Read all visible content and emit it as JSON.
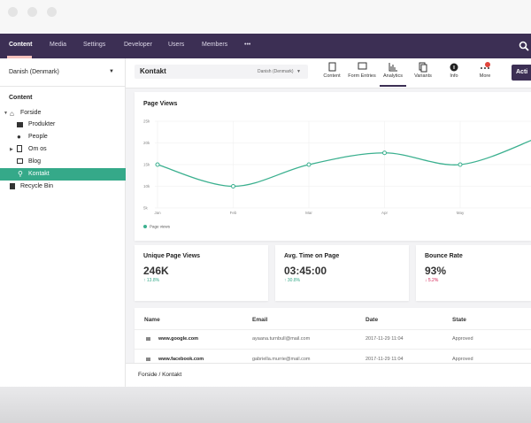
{
  "nav": {
    "items": [
      "Content",
      "Media",
      "Settings",
      "Developer",
      "Users",
      "Members",
      "•••"
    ]
  },
  "sidebar": {
    "language": "Danish (Denmark)",
    "heading": "Content",
    "tree": [
      "Forside",
      "Produkter",
      "People",
      "Om os",
      "Blog",
      "Kontakt",
      "Recycle Bin"
    ]
  },
  "editor": {
    "name": "Kontakt",
    "language": "Danish (Denmark)",
    "tabs": [
      "Content",
      "Form Entries",
      "Analytics",
      "Variants",
      "Info",
      "More"
    ],
    "action": "Acti"
  },
  "chart_data": {
    "type": "line",
    "title": "Page Views",
    "categories": [
      "Jan",
      "Feb",
      "Mar",
      "Apr",
      "May",
      null
    ],
    "series": [
      {
        "name": "Page views",
        "color": "#3bb08f",
        "values": [
          15000,
          10000,
          15000,
          17700,
          15000,
          21000
        ]
      }
    ],
    "ylim": [
      5000,
      25000
    ],
    "yticks": [
      {
        "value": 25000,
        "label": "25k"
      },
      {
        "value": 20000,
        "label": "20k"
      },
      {
        "value": 15000,
        "label": "15k"
      },
      {
        "value": 10000,
        "label": "10k"
      },
      {
        "value": 5000,
        "label": "5k"
      }
    ],
    "grid": true
  },
  "stats": [
    {
      "label": "Unique Page Views",
      "value": "246K",
      "change": "↑ 13.8%"
    },
    {
      "label": "Avg. Time on Page",
      "value": "03:45:00",
      "change": "↑ 30.8%"
    },
    {
      "label": "Bounce Rate",
      "value": "93%",
      "change": "↓ 5.2%"
    }
  ],
  "table": {
    "columns": [
      "Name",
      "Email",
      "Date",
      "State"
    ],
    "rows": [
      [
        "www.google.com",
        "ayaana.turnbull@mail.com",
        "2017-11-29 11:04",
        "Approved"
      ],
      [
        "www.facebook.com",
        "gabriella.murrie@mail.com",
        "2017-11-29 11:04",
        "Approved"
      ]
    ]
  },
  "breadcrumb": "Forside / Kontakt"
}
